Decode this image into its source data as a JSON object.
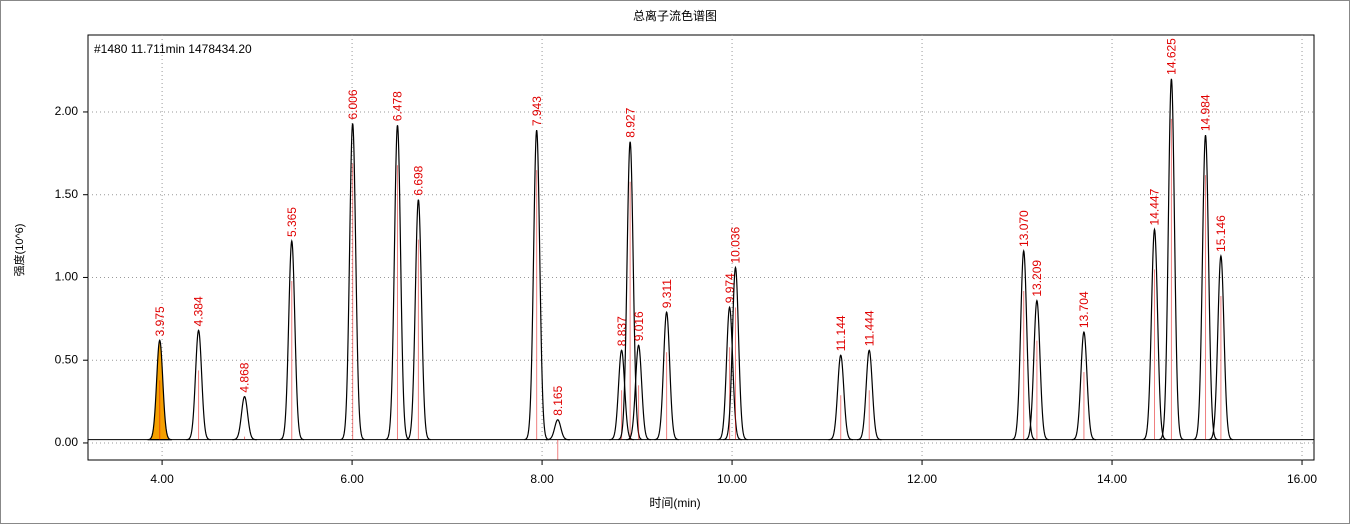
{
  "chart_data": {
    "type": "chromatogram",
    "title": "总离子流色谱图",
    "annotation": "#1480  11.711min  1478434.20",
    "x_label": "时间(min)",
    "y_label": "强度(10^6)",
    "x": [
      3.975,
      4.384,
      4.868,
      5.365,
      6.006,
      6.478,
      6.698,
      7.943,
      8.165,
      8.837,
      8.927,
      9.016,
      9.311,
      9.974,
      10.036,
      11.144,
      11.444,
      13.07,
      13.209,
      13.704,
      14.447,
      14.625,
      14.984,
      15.146
    ],
    "values": [
      0.62,
      0.68,
      0.28,
      1.22,
      1.93,
      1.92,
      1.47,
      1.89,
      0.14,
      0.56,
      1.82,
      0.59,
      0.79,
      0.82,
      1.06,
      0.53,
      0.56,
      1.16,
      0.86,
      0.67,
      1.29,
      2.2,
      1.86,
      1.13
    ],
    "value_labels": [
      "3.975",
      "4.384",
      "4.868",
      "5.365",
      "6.006",
      "6.478",
      "6.698",
      "7.943",
      "8.165",
      "8.837",
      "8.927",
      "9.016",
      "9.311",
      "9.974",
      "10.036",
      "11.144",
      "11.444",
      "13.070",
      "13.209",
      "13.704",
      "14.447",
      "14.625",
      "14.984",
      "15.146"
    ],
    "baseline": 0.02,
    "color": "#000000",
    "label_color": "#e00000",
    "highlight_index": 0,
    "highlight_color": "#f5a000",
    "xlim": [
      3.22,
      16.126
    ],
    "ylim": [
      -0.103,
      2.465
    ],
    "xticks": [
      {
        "value": 4,
        "label": "4.00"
      },
      {
        "value": 6,
        "label": "6.00"
      },
      {
        "value": 8,
        "label": "8.00"
      },
      {
        "value": 10,
        "label": "10.00"
      },
      {
        "value": 12,
        "label": "12.00"
      },
      {
        "value": 14,
        "label": "14.00"
      },
      {
        "value": 16,
        "label": "16.00"
      }
    ],
    "yticks": [
      {
        "value": 0,
        "label": "0.00"
      },
      {
        "value": 0.5,
        "label": "0.50"
      },
      {
        "value": 1,
        "label": "1.00"
      },
      {
        "value": 1.5,
        "label": "1.50"
      },
      {
        "value": 2,
        "label": "2.00"
      }
    ],
    "grid": true
  }
}
